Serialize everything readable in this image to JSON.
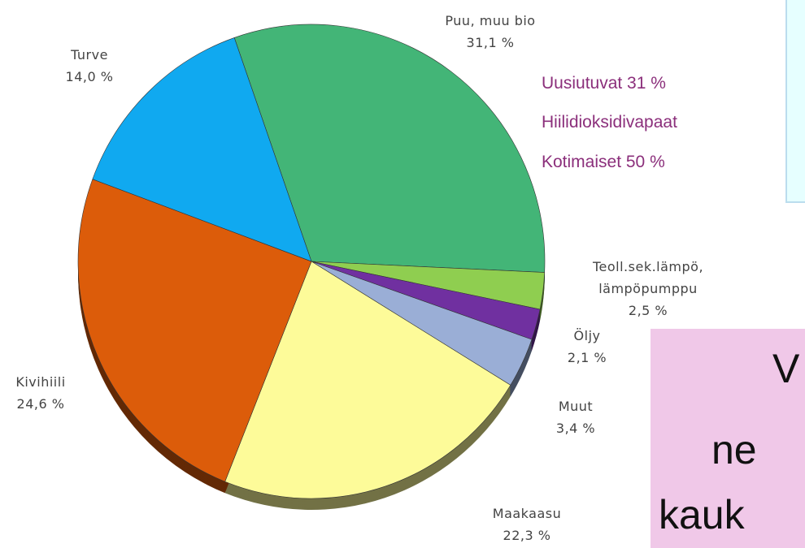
{
  "chart_data": {
    "type": "pie",
    "categories": [
      "Puu, muu bio",
      "Teoll.sek.lämpö, lämpöpumppu",
      "Öljy",
      "Muut",
      "Maakaasu",
      "Kivihiili",
      "Turve"
    ],
    "values": [
      31.1,
      2.5,
      2.1,
      3.4,
      22.3,
      24.6,
      14.0
    ],
    "value_labels": [
      "31,1 %",
      "2,5 %",
      "2,1 %",
      "3,4 %",
      "22,3 %",
      "24,6 %",
      "14,0 %"
    ],
    "colors": [
      "#43b577",
      "#8fce50",
      "#7030a0",
      "#9aaed6",
      "#fdfb99",
      "#dc5c0a",
      "#10a9f0"
    ]
  },
  "notes": [
    "Uusiutuvat 31 %",
    "Hiilidioksidivapaat",
    "Kotimaiset 50 %"
  ],
  "panel_text": [
    "V",
    "ne",
    "kauk"
  ]
}
